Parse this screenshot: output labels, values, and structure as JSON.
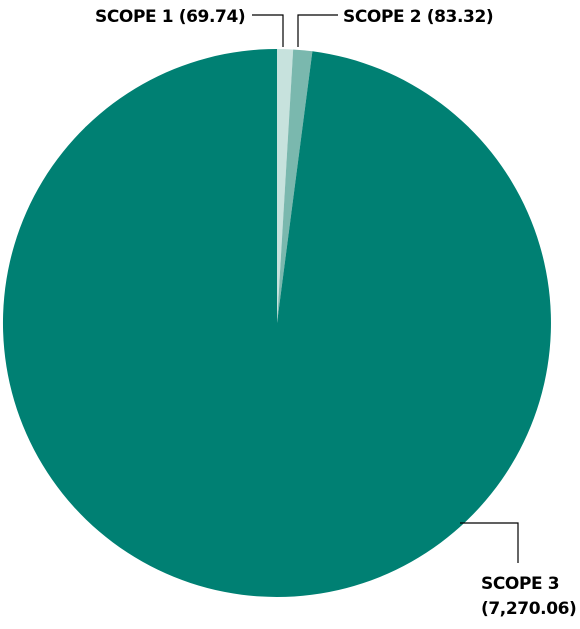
{
  "chart_data": {
    "type": "pie",
    "title": "",
    "slices": [
      {
        "label": "SCOPE 1",
        "value_text": "(69.74)",
        "value": 69.74,
        "color": "#c7e2dd"
      },
      {
        "label": "SCOPE 2",
        "value_text": "(83.32)",
        "value": 83.32,
        "color": "#7ab8ae"
      },
      {
        "label": "SCOPE 3",
        "value_text": "(7,270.06)",
        "value": 7270.06,
        "color": "#008073"
      }
    ],
    "start_angle_deg": 0,
    "direction": "clockwise",
    "legend": "none"
  }
}
